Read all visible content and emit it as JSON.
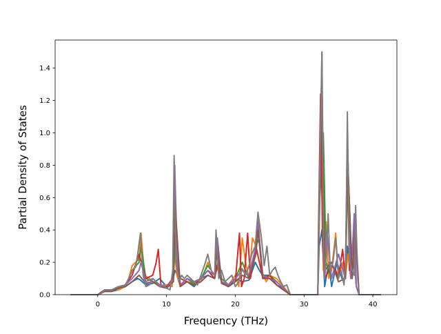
{
  "chart_data": {
    "type": "line",
    "title": "",
    "xlabel": "Frequency (THz)",
    "ylabel": "Partial Density of States",
    "xlim": [
      -6.2,
      43.5
    ],
    "ylim": [
      0,
      1.5736
    ],
    "xticks": [
      0,
      10,
      20,
      30,
      40
    ],
    "yticks": [
      0.0,
      0.2,
      0.4,
      0.6,
      0.8,
      1.0,
      1.2,
      1.4
    ],
    "xtick_labels": [
      "0",
      "10",
      "20",
      "30",
      "40"
    ],
    "ytick_labels": [
      "0.0",
      "0.2",
      "0.4",
      "0.6",
      "0.8",
      "1.0",
      "1.2",
      "1.4"
    ],
    "grid": false,
    "legend": false,
    "series": [
      {
        "color": "#1f77b4",
        "x": [
          -4,
          0,
          1,
          2,
          3,
          4,
          5,
          5.8,
          6.2,
          7,
          8,
          9,
          10,
          11,
          11.2,
          11.6,
          12,
          13,
          14,
          15,
          16,
          17,
          17.3,
          18,
          19,
          20,
          21,
          22,
          22.9,
          23.5,
          24,
          25,
          26,
          27,
          27.5,
          28,
          32,
          32.2,
          32.6,
          33,
          33.6,
          34,
          34.8,
          35.5,
          36,
          36.3,
          36.8,
          37.3,
          37.6,
          38,
          41.2
        ],
        "y": [
          0,
          0,
          0.02,
          0.02,
          0.03,
          0.05,
          0.08,
          0.1,
          0.09,
          0.06,
          0.07,
          0.1,
          0.05,
          0.1,
          0.15,
          0.12,
          0.06,
          0.08,
          0.05,
          0.1,
          0.12,
          0.1,
          0.18,
          0.08,
          0.05,
          0.1,
          0.08,
          0.09,
          0.2,
          0.15,
          0.12,
          0.12,
          0.06,
          0.04,
          0.02,
          0,
          0,
          0.3,
          0.4,
          0.05,
          0.2,
          0.05,
          0.2,
          0.1,
          0.1,
          0.3,
          0.1,
          0.2,
          0.05,
          0,
          0
        ]
      },
      {
        "color": "#ff7f0e",
        "x": [
          -4,
          0,
          1,
          2,
          3,
          4,
          4.5,
          5,
          5.5,
          6,
          6.3,
          6.8,
          7.5,
          8,
          9,
          10,
          10.8,
          11.1,
          11.5,
          12,
          13,
          14,
          15,
          16,
          16.5,
          17,
          17.5,
          18,
          19,
          20,
          20.5,
          21,
          21.5,
          22,
          22.5,
          23,
          23.3,
          23.8,
          24.5,
          25,
          26,
          27,
          28,
          32,
          32.2,
          32.5,
          32.8,
          33.2,
          33.6,
          34,
          34.6,
          35,
          35.6,
          36,
          36.4,
          36.8,
          37.3,
          37.6,
          38,
          41.2
        ],
        "y": [
          0,
          0,
          0.02,
          0.03,
          0.03,
          0.05,
          0.1,
          0.18,
          0.2,
          0.22,
          0.38,
          0.12,
          0.1,
          0.08,
          0.05,
          0.06,
          0.05,
          0.3,
          0.12,
          0.05,
          0.1,
          0.06,
          0.08,
          0.2,
          0.15,
          0.12,
          0.18,
          0.1,
          0.06,
          0.12,
          0.05,
          0.35,
          0.2,
          0.1,
          0.35,
          0.3,
          0.5,
          0.15,
          0.08,
          0.12,
          0.1,
          0.05,
          0,
          0,
          0.5,
          1.27,
          0.15,
          0.45,
          0.1,
          0.15,
          0.38,
          0.1,
          0.2,
          0.1,
          0.25,
          0.1,
          0.28,
          0.05,
          0,
          0
        ]
      },
      {
        "color": "#2ca02c",
        "x": [
          -4,
          0,
          1,
          2,
          3,
          4,
          5,
          6,
          6.3,
          7,
          8,
          9,
          10,
          11,
          11.3,
          12,
          13,
          14,
          15,
          16,
          17,
          17.4,
          18,
          19,
          20,
          21,
          22,
          23,
          23.5,
          24,
          25,
          26,
          27,
          28,
          32,
          32.3,
          32.8,
          33.2,
          34,
          35,
          36,
          36.4,
          37,
          37.4,
          38,
          41.2
        ],
        "y": [
          0,
          0,
          0.02,
          0.02,
          0.04,
          0.05,
          0.15,
          0.2,
          0.3,
          0.1,
          0.08,
          0.06,
          0.04,
          0.1,
          0.35,
          0.06,
          0.1,
          0.07,
          0.1,
          0.18,
          0.12,
          0.3,
          0.1,
          0.06,
          0.1,
          0.2,
          0.1,
          0.3,
          0.35,
          0.1,
          0.12,
          0.08,
          0.04,
          0,
          0,
          0.6,
          1.0,
          0.2,
          0.1,
          0.25,
          0.1,
          0.8,
          0.1,
          0.4,
          0,
          0
        ]
      },
      {
        "color": "#d62728",
        "x": [
          -4,
          0,
          1,
          2,
          3,
          4,
          5,
          6,
          7,
          8,
          8.5,
          8.8,
          9.2,
          10,
          10.9,
          11.2,
          11.6,
          12,
          13,
          14,
          15,
          16,
          17,
          17.5,
          18,
          19,
          20,
          20.6,
          20.9,
          21.3,
          21.8,
          22.2,
          23,
          24,
          25,
          26,
          27,
          28,
          32,
          32.1,
          32.4,
          32.7,
          33,
          34,
          34.6,
          35,
          35.6,
          36,
          36.3,
          36.6,
          37,
          37.4,
          38,
          41.2
        ],
        "y": [
          0,
          0,
          0.03,
          0.03,
          0.04,
          0.06,
          0.12,
          0.25,
          0.1,
          0.12,
          0.2,
          0.28,
          0.05,
          0.05,
          0.1,
          0.38,
          0.18,
          0.1,
          0.08,
          0.06,
          0.1,
          0.15,
          0.1,
          0.2,
          0.08,
          0.05,
          0.08,
          0.38,
          0.05,
          0.1,
          0.38,
          0.1,
          0.3,
          0.1,
          0.12,
          0.06,
          0.03,
          0,
          0,
          0.4,
          1.24,
          0.3,
          0.1,
          0.18,
          0.15,
          0.1,
          0.28,
          0.1,
          0.9,
          0.15,
          0.25,
          0.5,
          0,
          0
        ]
      },
      {
        "color": "#9467bd",
        "x": [
          -4,
          0,
          1,
          2,
          3,
          4,
          5,
          6,
          6.3,
          7,
          8,
          9,
          10,
          11,
          11.2,
          11.6,
          12,
          13,
          14,
          15,
          16,
          17,
          17.4,
          18,
          19,
          20,
          21,
          22,
          23,
          23.3,
          24,
          25,
          26,
          27,
          28,
          32,
          32.3,
          32.6,
          32.9,
          33.3,
          34,
          35,
          36,
          36.3,
          36.8,
          37.3,
          37.6,
          38,
          41.2
        ],
        "y": [
          0,
          0,
          0.02,
          0.03,
          0.04,
          0.06,
          0.1,
          0.15,
          0.2,
          0.08,
          0.1,
          0.06,
          0.04,
          0.1,
          0.8,
          0.15,
          0.06,
          0.1,
          0.08,
          0.1,
          0.15,
          0.12,
          0.35,
          0.08,
          0.06,
          0.1,
          0.15,
          0.12,
          0.3,
          0.45,
          0.12,
          0.1,
          0.08,
          0.04,
          0,
          0,
          0.7,
          1.5,
          0.2,
          0.4,
          0.1,
          0.25,
          0.1,
          1.0,
          0.1,
          0.5,
          0.05,
          0,
          0
        ]
      },
      {
        "color": "#8c564b",
        "x": [
          -4,
          0,
          1,
          2,
          3,
          4,
          5,
          6,
          7,
          8,
          9,
          10,
          11,
          11.2,
          12,
          13,
          14,
          15,
          16,
          17,
          17.4,
          18,
          19,
          20,
          21,
          22,
          23,
          23.3,
          24,
          25,
          26,
          27,
          28,
          32,
          32.3,
          32.6,
          33,
          34,
          35,
          36,
          36.3,
          37,
          37.4,
          38,
          41.2
        ],
        "y": [
          0,
          0,
          0.02,
          0.02,
          0.04,
          0.05,
          0.08,
          0.12,
          0.07,
          0.08,
          0.05,
          0.04,
          0.08,
          0.6,
          0.05,
          0.08,
          0.06,
          0.08,
          0.12,
          0.1,
          0.3,
          0.07,
          0.05,
          0.08,
          0.12,
          0.1,
          0.25,
          0.4,
          0.1,
          0.1,
          0.06,
          0.03,
          0,
          0,
          0.8,
          1.2,
          0.15,
          0.2,
          0.08,
          0.1,
          0.9,
          0.1,
          0.4,
          0,
          0
        ]
      },
      {
        "color": "#7f7f7f",
        "x": [
          -4,
          0,
          0.6,
          1,
          2,
          3,
          4,
          4.5,
          5,
          5.5,
          5.8,
          6.2,
          6.6,
          7,
          7.5,
          8,
          8.5,
          9,
          9.5,
          10,
          10.5,
          10.9,
          11.1,
          11.4,
          11.8,
          12.2,
          12.6,
          13,
          13.5,
          14,
          14.5,
          15,
          15.5,
          16,
          16.5,
          17,
          17.2,
          17.6,
          18,
          18.5,
          19,
          19.5,
          20,
          20.5,
          21,
          21.5,
          22,
          22.4,
          22.9,
          23.3,
          23.8,
          24.2,
          24.6,
          25,
          25.4,
          25.8,
          26.2,
          26.6,
          27,
          27.5,
          28,
          32,
          32.1,
          32.3,
          32.6,
          32.8,
          33,
          33.2,
          33.5,
          33.8,
          34.2,
          34.6,
          35,
          35.4,
          35.8,
          36.1,
          36.3,
          36.6,
          37,
          37.3,
          37.5,
          37.8,
          38,
          41.2
        ],
        "y": [
          0,
          0,
          0.01,
          0.03,
          0.03,
          0.05,
          0.06,
          0.1,
          0.15,
          0.17,
          0.25,
          0.38,
          0.12,
          0.05,
          0.06,
          0.1,
          0.08,
          0.05,
          0.06,
          0.04,
          0.03,
          0.15,
          0.86,
          0.2,
          0.08,
          0.12,
          0.1,
          0.12,
          0.1,
          0.08,
          0.06,
          0.12,
          0.18,
          0.25,
          0.15,
          0.12,
          0.4,
          0.1,
          0.15,
          0.08,
          0.1,
          0.12,
          0.05,
          0.08,
          0.16,
          0.12,
          0.18,
          0.25,
          0.3,
          0.51,
          0.35,
          0.18,
          0.3,
          0.12,
          0.15,
          0.17,
          0.12,
          0.08,
          0.05,
          0.06,
          0,
          0,
          0.2,
          0.8,
          1.5,
          0.3,
          0.1,
          0.2,
          0.5,
          0.15,
          0.2,
          0.35,
          0.1,
          0.15,
          0.06,
          0.25,
          1.13,
          0.2,
          0.15,
          0.12,
          0.55,
          0.1,
          0,
          0
        ]
      }
    ]
  }
}
